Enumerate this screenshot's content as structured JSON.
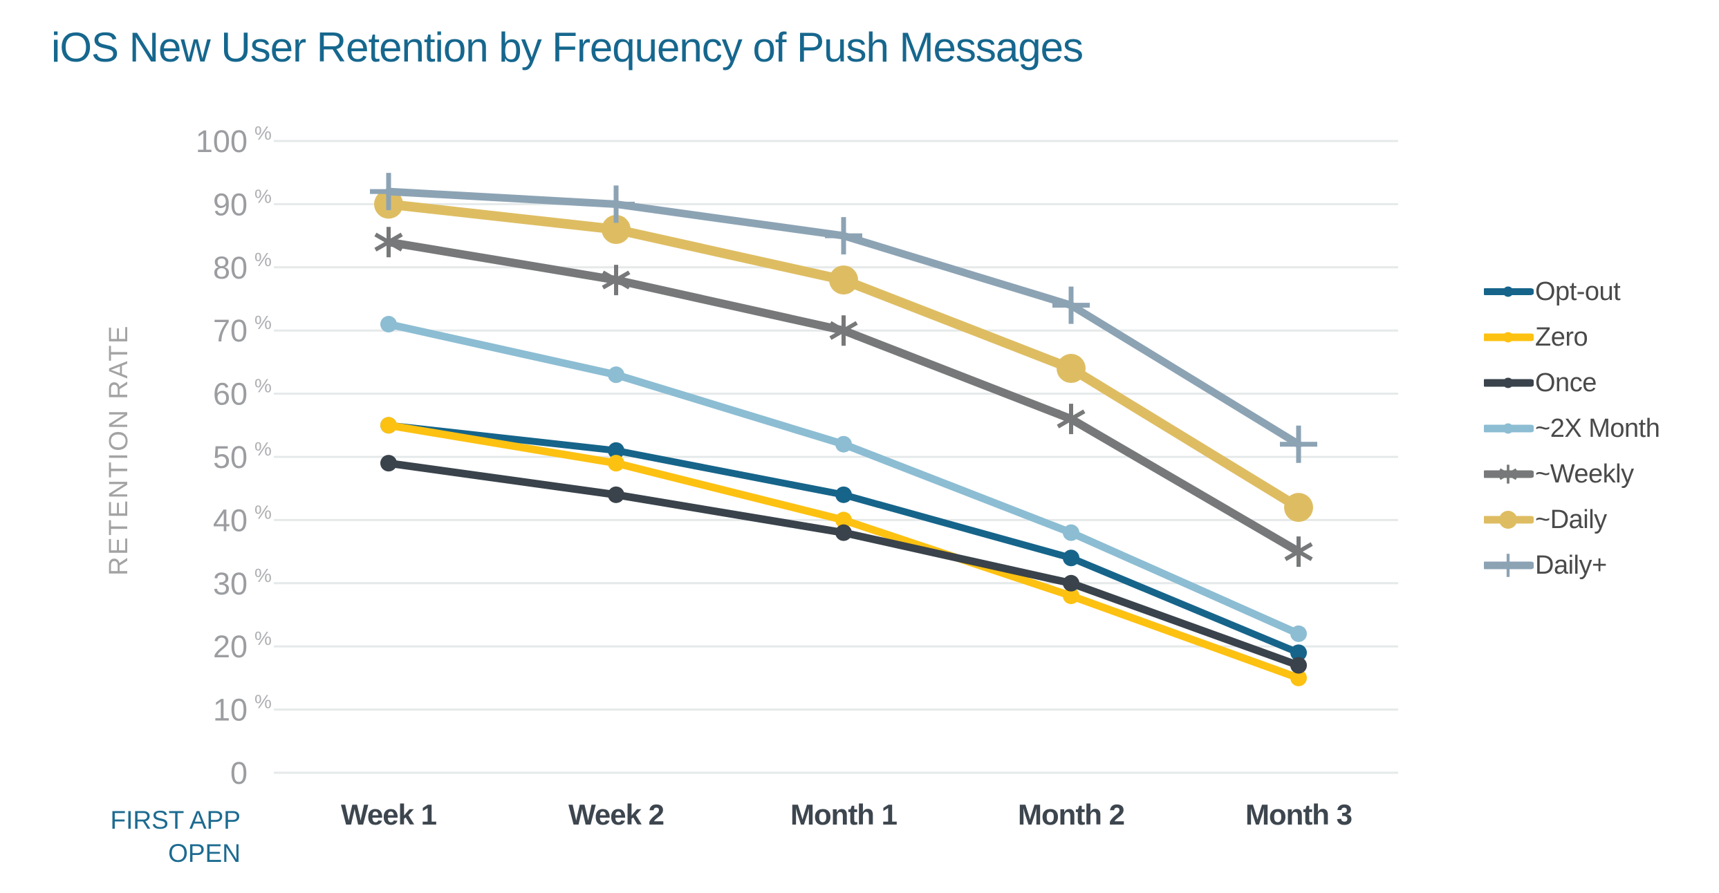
{
  "page": {
    "title": "iOS New User Retention by Frequency of Push Messages"
  },
  "chart_data": {
    "type": "line",
    "title": "iOS New User Retention by Frequency of Push Messages",
    "categories": [
      "Week 1",
      "Week 2",
      "Month 1",
      "Month 2",
      "Month 3"
    ],
    "x_axis_caption_lines": [
      "FIRST APP",
      "OPEN"
    ],
    "y_axis_label": "RETENTION RATE",
    "y_ticks": [
      100,
      90,
      80,
      70,
      60,
      50,
      40,
      30,
      20,
      10,
      0
    ],
    "y_tick_suffix": "%",
    "ylim": [
      0,
      100
    ],
    "grid": true,
    "legend_position": "right",
    "series": [
      {
        "name": "Opt-out",
        "color": "#16648a",
        "marker": "circle",
        "line_width": 10,
        "values": [
          55,
          51,
          44,
          34,
          19
        ]
      },
      {
        "name": "Zero",
        "color": "#fdc111",
        "marker": "circle",
        "line_width": 11,
        "values": [
          55,
          49,
          40,
          28,
          15
        ]
      },
      {
        "name": "Once",
        "color": "#3a434b",
        "marker": "circle",
        "line_width": 11,
        "values": [
          49,
          44,
          38,
          30,
          17
        ]
      },
      {
        "name": "~2X Month",
        "color": "#8cbdd3",
        "marker": "circle",
        "line_width": 11,
        "values": [
          71,
          63,
          52,
          38,
          22
        ]
      },
      {
        "name": "~Weekly",
        "color": "#767879",
        "marker": "asterisk",
        "line_width": 12,
        "values": [
          84,
          78,
          70,
          56,
          35
        ]
      },
      {
        "name": "~Daily",
        "color": "#debd62",
        "marker": "circle-large",
        "line_width": 14,
        "values": [
          90,
          86,
          78,
          64,
          42
        ]
      },
      {
        "name": "Daily+",
        "color": "#8ca3b4",
        "marker": "plus",
        "line_width": 11,
        "values": [
          92,
          90,
          85,
          74,
          52
        ]
      }
    ]
  },
  "colors": {
    "title_text": "#16678e",
    "caption_text": "#1c6b90",
    "y_axis_title": "#a3a3a3",
    "y_tick_text": "#9b9da0",
    "percent_sign": "#aeb0b2",
    "x_tick_text": "#3d464e",
    "gridline": "#e5e9e9",
    "legend_text": "#4a4a4a",
    "background": "#ffffff"
  }
}
